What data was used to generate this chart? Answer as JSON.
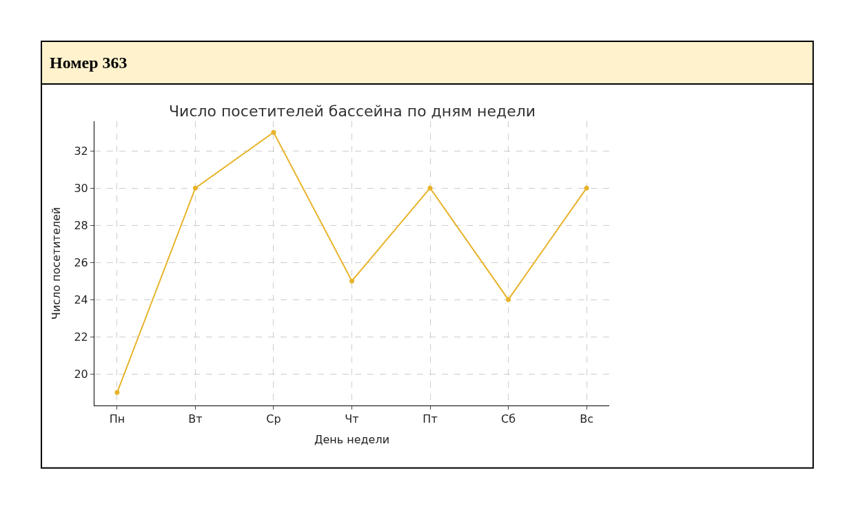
{
  "chart_data": {
    "type": "line",
    "title": "Число посетителей бассейна по дням недели",
    "xlabel": "День недели",
    "ylabel": "Число посетителей",
    "annotations": [
      "Номер 363"
    ],
    "categories": [
      "Пн",
      "Вт",
      "Ср",
      "Чт",
      "Пт",
      "Сб",
      "Вс"
    ],
    "series": [
      {
        "color": "#e8b32a",
        "values": [
          19,
          30,
          33,
          25,
          30,
          24,
          30
        ]
      }
    ],
    "ylim": [
      18.3,
      33.6
    ],
    "yticks": [
      20,
      22,
      24,
      26,
      28,
      30,
      32
    ],
    "grid": true,
    "marker": "circle",
    "line_style": "solid",
    "legend": false
  }
}
